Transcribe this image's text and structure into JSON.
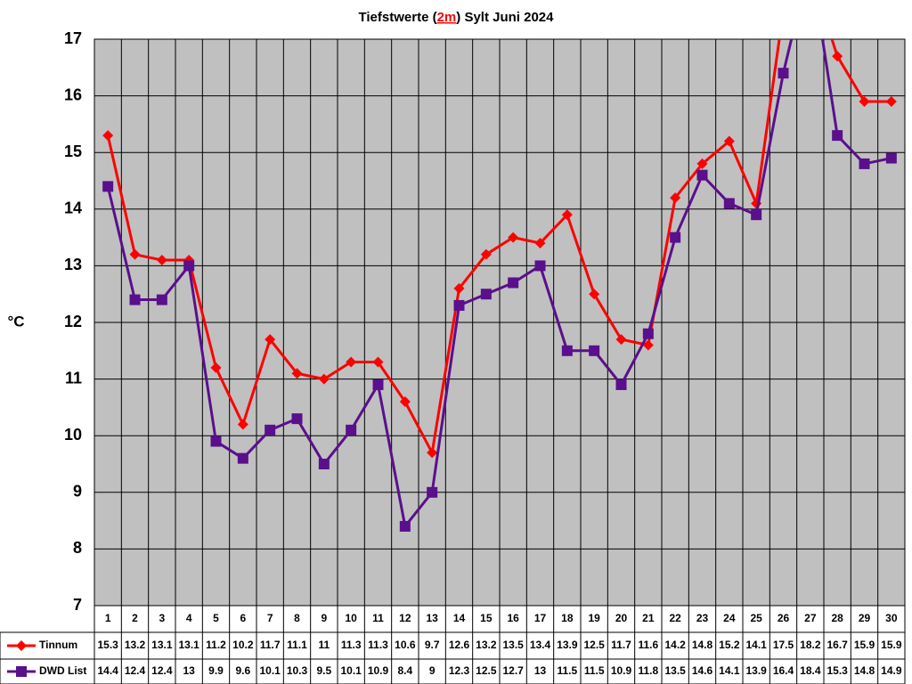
{
  "chart_data": {
    "type": "line",
    "title": [
      "Tiefstwerte (",
      "2m",
      ") Sylt Juni 2024"
    ],
    "y_label": "°C",
    "categories": [
      "1",
      "2",
      "3",
      "4",
      "5",
      "6",
      "7",
      "8",
      "9",
      "10",
      "11",
      "12",
      "13",
      "14",
      "15",
      "16",
      "17",
      "18",
      "19",
      "20",
      "21",
      "22",
      "23",
      "24",
      "25",
      "26",
      "27",
      "28",
      "29",
      "30"
    ],
    "series": [
      {
        "name": "Tinnum",
        "color": "#ff0000",
        "marker": "diamond",
        "values": [
          15.3,
          13.2,
          13.1,
          13.1,
          11.2,
          10.2,
          11.7,
          11.1,
          11,
          11.3,
          11.3,
          10.6,
          9.7,
          12.6,
          13.2,
          13.5,
          13.4,
          13.9,
          12.5,
          11.7,
          11.6,
          14.2,
          14.8,
          15.2,
          14.1,
          17.5,
          18.2,
          16.7,
          15.9,
          15.9
        ]
      },
      {
        "name": "DWD List",
        "color": "#5a0f8c",
        "marker": "square",
        "values": [
          14.4,
          12.4,
          12.4,
          13,
          9.9,
          9.6,
          10.1,
          10.3,
          9.5,
          10.1,
          10.9,
          8.4,
          9,
          12.3,
          12.5,
          12.7,
          13,
          11.5,
          11.5,
          10.9,
          11.8,
          13.5,
          14.6,
          14.1,
          13.9,
          16.4,
          18.4,
          15.3,
          14.8,
          14.9
        ]
      }
    ],
    "ylim": [
      7,
      17
    ],
    "yticks": [
      7,
      8,
      9,
      10,
      11,
      12,
      13,
      14,
      15,
      16,
      17
    ],
    "grid": true,
    "plot_background": "#c0c0c0"
  }
}
